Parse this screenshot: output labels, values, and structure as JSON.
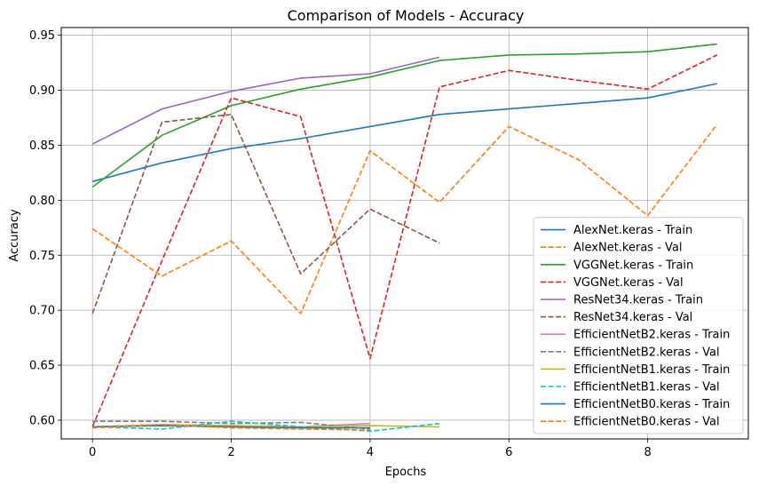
{
  "chart_data": {
    "type": "line",
    "title": "Comparison of Models - Accuracy",
    "xlabel": "Epochs",
    "ylabel": "Accuracy",
    "xlim": [
      -0.45,
      9.45
    ],
    "ylim": [
      0.583,
      0.957
    ],
    "xticks": [
      0,
      2,
      4,
      6,
      8
    ],
    "yticks": [
      0.6,
      0.65,
      0.7,
      0.75,
      0.8,
      0.85,
      0.9,
      0.95
    ],
    "ytick_labels": [
      "0.60",
      "0.65",
      "0.70",
      "0.75",
      "0.80",
      "0.85",
      "0.90",
      "0.95"
    ],
    "grid": true,
    "legend_position": "lower-right",
    "series": [
      {
        "name": "AlexNet.keras - Train",
        "color": "#1f77b4",
        "dashed": false,
        "x": [
          0,
          1,
          2,
          3,
          4,
          5,
          6,
          7,
          8,
          9
        ],
        "values": [
          0.817,
          0.834,
          0.847,
          0.856,
          0.867,
          0.878,
          0.883,
          0.888,
          0.893,
          0.906
        ]
      },
      {
        "name": "AlexNet.keras - Val",
        "color": "#ff7f0e",
        "dashed": true,
        "x": [
          0,
          1,
          2,
          3,
          4,
          5,
          6,
          7,
          8,
          9
        ],
        "values": [
          0.774,
          0.731,
          0.763,
          0.697,
          0.845,
          0.798,
          0.867,
          0.837,
          0.786,
          0.869
        ]
      },
      {
        "name": "VGGNet.keras - Train",
        "color": "#2ca02c",
        "dashed": false,
        "x": [
          0,
          1,
          2,
          3,
          4,
          5,
          6,
          7,
          8,
          9
        ],
        "values": [
          0.812,
          0.859,
          0.886,
          0.901,
          0.912,
          0.927,
          0.932,
          0.933,
          0.935,
          0.942
        ]
      },
      {
        "name": "VGGNet.keras - Val",
        "color": "#d62728",
        "dashed": true,
        "x": [
          0,
          1,
          2,
          3,
          4,
          5,
          6,
          7,
          8,
          9
        ],
        "values": [
          0.594,
          0.745,
          0.893,
          0.876,
          0.656,
          0.903,
          0.918,
          0.909,
          0.901,
          0.932
        ]
      },
      {
        "name": "ResNet34.keras - Train",
        "color": "#9467bd",
        "dashed": false,
        "x": [
          0,
          1,
          2,
          3,
          4,
          5
        ],
        "values": [
          0.851,
          0.883,
          0.899,
          0.911,
          0.915,
          0.93
        ]
      },
      {
        "name": "ResNet34.keras - Val",
        "color": "#8c564b",
        "dashed": true,
        "x": [
          0,
          1,
          2,
          3,
          4,
          5
        ],
        "values": [
          0.697,
          0.871,
          0.878,
          0.733,
          0.792,
          0.761
        ]
      },
      {
        "name": "EfficientNetB2.keras - Train",
        "color": "#e377c2",
        "dashed": false,
        "x": [
          0,
          1,
          2,
          3,
          4
        ],
        "values": [
          0.594,
          0.596,
          0.595,
          0.594,
          0.597
        ]
      },
      {
        "name": "EfficientNetB2.keras - Val",
        "color": "#7f7f7f",
        "dashed": true,
        "x": [
          0,
          1,
          2,
          3,
          4
        ],
        "values": [
          0.599,
          0.599,
          0.597,
          0.598,
          0.592
        ]
      },
      {
        "name": "EfficientNetB1.keras - Train",
        "color": "#bcbd22",
        "dashed": false,
        "x": [
          0,
          1,
          2,
          3,
          4,
          5
        ],
        "values": [
          0.594,
          0.596,
          0.595,
          0.594,
          0.595,
          0.594
        ]
      },
      {
        "name": "EfficientNetB1.keras - Val",
        "color": "#17becf",
        "dashed": true,
        "x": [
          0,
          1,
          2,
          3,
          4,
          5
        ],
        "values": [
          0.594,
          0.592,
          0.599,
          0.594,
          0.59,
          0.597
        ]
      },
      {
        "name": "EfficientNetB0.keras - Train",
        "color": "#1f77b4",
        "dashed": false,
        "x": [
          0,
          1,
          2,
          3,
          4
        ],
        "values": [
          0.594,
          0.595,
          0.594,
          0.593,
          0.593
        ]
      },
      {
        "name": "EfficientNetB0.keras - Val",
        "color": "#ff7f0e",
        "dashed": true,
        "x": [
          0,
          1,
          2,
          3,
          4
        ],
        "values": [
          0.593,
          0.596,
          0.593,
          0.592,
          0.591
        ]
      }
    ]
  }
}
